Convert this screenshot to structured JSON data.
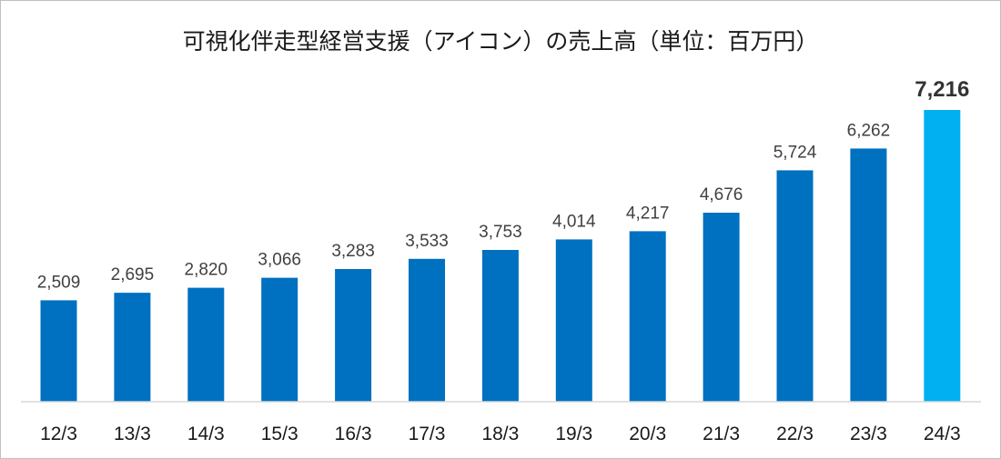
{
  "chart_data": {
    "type": "bar",
    "title": "可視化伴走型経営支援（アイコン）の売上高（単位：百万円）",
    "categories": [
      "12/3",
      "13/3",
      "14/3",
      "15/3",
      "16/3",
      "17/3",
      "18/3",
      "19/3",
      "20/3",
      "21/3",
      "22/3",
      "23/3",
      "24/3"
    ],
    "values": [
      2509,
      2695,
      2820,
      3066,
      3283,
      3533,
      3753,
      4014,
      4217,
      4676,
      5724,
      6262,
      7216
    ],
    "value_labels": [
      "2,509",
      "2,695",
      "2,820",
      "3,066",
      "3,283",
      "3,533",
      "3,753",
      "4,014",
      "4,217",
      "4,676",
      "5,724",
      "6,262",
      "7,216"
    ],
    "highlight_index": 12,
    "ylim": [
      0,
      7216
    ],
    "grid": false,
    "legend": "none",
    "xlabel": "",
    "ylabel": "",
    "colors": {
      "bar": "#0070c0",
      "highlight": "#00b0f0",
      "axis": "#d9d9d9"
    }
  }
}
